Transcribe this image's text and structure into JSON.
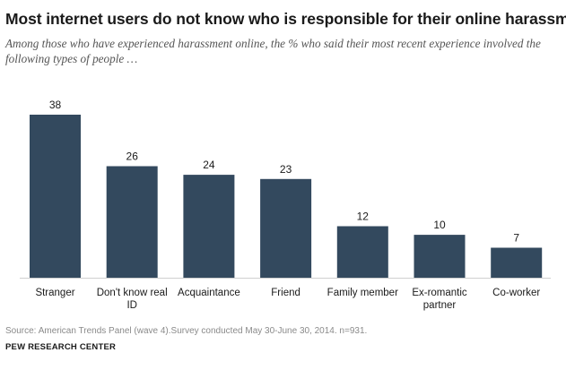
{
  "title": "Most internet users do not know who is responsible for their online harassment",
  "subtitle": "Among those who have experienced harassment online, the % who said their most recent experience involved the following types of people …",
  "source": "Source: American Trends Panel (wave 4).Survey conducted May 30-June 30, 2014. n=931.",
  "org": "PEW RESEARCH CENTER",
  "colors": {
    "bar": "#33495e",
    "axis": "#d0d0d0"
  },
  "chart_data": {
    "type": "bar",
    "categories": [
      [
        "Stranger"
      ],
      [
        "Don't know real",
        "ID"
      ],
      [
        "Acquaintance"
      ],
      [
        "Friend"
      ],
      [
        "Family member"
      ],
      [
        "Ex-romantic",
        "partner"
      ],
      [
        "Co-worker"
      ]
    ],
    "values": [
      38,
      26,
      24,
      23,
      12,
      10,
      7
    ],
    "ylim": [
      0,
      38
    ],
    "grid": false,
    "legend": "none"
  }
}
